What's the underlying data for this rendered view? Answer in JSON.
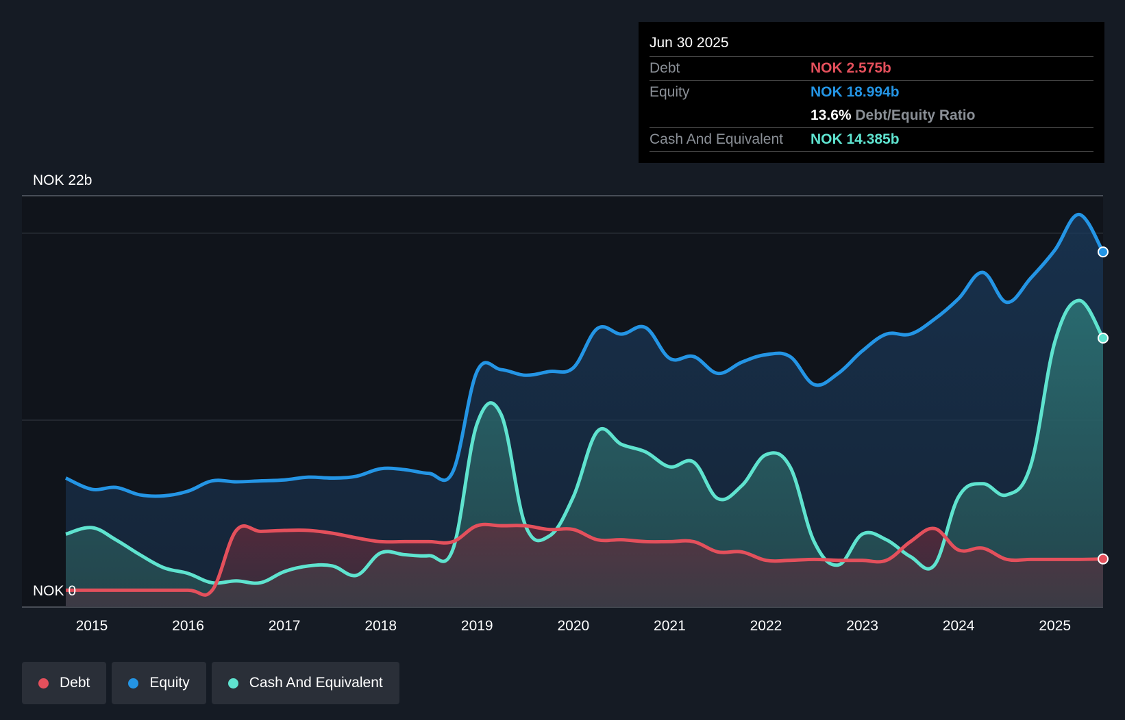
{
  "chart_data": {
    "type": "area",
    "y_axis": {
      "top_label": "NOK 22b",
      "bottom_label": "NOK 0",
      "max": 22,
      "min": 0,
      "unit": "NOK b"
    },
    "x_axis": {
      "ticks": [
        "2015",
        "2016",
        "2017",
        "2018",
        "2019",
        "2020",
        "2021",
        "2022",
        "2023",
        "2024",
        "2025"
      ],
      "range": [
        2014.73,
        2025.5
      ]
    },
    "series": [
      {
        "name": "Debt",
        "color": "#e4505c",
        "points": [
          [
            2014.73,
            0.9
          ],
          [
            2015.0,
            0.9
          ],
          [
            2015.5,
            0.9
          ],
          [
            2016.0,
            0.9
          ],
          [
            2016.25,
            0.9
          ],
          [
            2016.5,
            4.1
          ],
          [
            2016.75,
            4.05
          ],
          [
            2017.0,
            4.1
          ],
          [
            2017.25,
            4.1
          ],
          [
            2017.5,
            3.95
          ],
          [
            2017.75,
            3.7
          ],
          [
            2018.0,
            3.5
          ],
          [
            2018.25,
            3.5
          ],
          [
            2018.5,
            3.5
          ],
          [
            2018.75,
            3.5
          ],
          [
            2019.0,
            4.35
          ],
          [
            2019.25,
            4.35
          ],
          [
            2019.5,
            4.35
          ],
          [
            2019.75,
            4.15
          ],
          [
            2020.0,
            4.15
          ],
          [
            2020.25,
            3.6
          ],
          [
            2020.5,
            3.6
          ],
          [
            2020.75,
            3.5
          ],
          [
            2021.0,
            3.5
          ],
          [
            2021.25,
            3.5
          ],
          [
            2021.5,
            2.95
          ],
          [
            2021.75,
            2.95
          ],
          [
            2022.0,
            2.5
          ],
          [
            2022.25,
            2.5
          ],
          [
            2022.5,
            2.55
          ],
          [
            2022.75,
            2.5
          ],
          [
            2023.0,
            2.5
          ],
          [
            2023.25,
            2.5
          ],
          [
            2023.5,
            3.5
          ],
          [
            2023.75,
            4.2
          ],
          [
            2024.0,
            3.05
          ],
          [
            2024.25,
            3.15
          ],
          [
            2024.5,
            2.55
          ],
          [
            2024.75,
            2.55
          ],
          [
            2025.0,
            2.55
          ],
          [
            2025.25,
            2.55
          ],
          [
            2025.5,
            2.575
          ]
        ]
      },
      {
        "name": "Equity",
        "color": "#2495e5",
        "points": [
          [
            2014.73,
            6.9
          ],
          [
            2015.0,
            6.3
          ],
          [
            2015.25,
            6.4
          ],
          [
            2015.5,
            6.0
          ],
          [
            2015.75,
            5.95
          ],
          [
            2016.0,
            6.2
          ],
          [
            2016.25,
            6.75
          ],
          [
            2016.5,
            6.7
          ],
          [
            2016.75,
            6.75
          ],
          [
            2017.0,
            6.8
          ],
          [
            2017.25,
            6.95
          ],
          [
            2017.5,
            6.9
          ],
          [
            2017.75,
            7.0
          ],
          [
            2018.0,
            7.4
          ],
          [
            2018.25,
            7.35
          ],
          [
            2018.5,
            7.15
          ],
          [
            2018.75,
            7.25
          ],
          [
            2019.0,
            12.6
          ],
          [
            2019.25,
            12.7
          ],
          [
            2019.5,
            12.4
          ],
          [
            2019.75,
            12.6
          ],
          [
            2020.0,
            12.8
          ],
          [
            2020.25,
            14.9
          ],
          [
            2020.5,
            14.6
          ],
          [
            2020.75,
            14.95
          ],
          [
            2021.0,
            13.3
          ],
          [
            2021.25,
            13.4
          ],
          [
            2021.5,
            12.5
          ],
          [
            2021.75,
            13.1
          ],
          [
            2022.0,
            13.5
          ],
          [
            2022.25,
            13.4
          ],
          [
            2022.5,
            11.9
          ],
          [
            2022.75,
            12.5
          ],
          [
            2023.0,
            13.7
          ],
          [
            2023.25,
            14.6
          ],
          [
            2023.5,
            14.6
          ],
          [
            2023.75,
            15.4
          ],
          [
            2024.0,
            16.5
          ],
          [
            2024.25,
            17.9
          ],
          [
            2024.5,
            16.3
          ],
          [
            2024.75,
            17.6
          ],
          [
            2025.0,
            19.1
          ],
          [
            2025.25,
            21.0
          ],
          [
            2025.5,
            18.994
          ]
        ]
      },
      {
        "name": "Cash And Equivalent",
        "color": "#5fe3cf",
        "points": [
          [
            2014.73,
            3.9
          ],
          [
            2015.0,
            4.25
          ],
          [
            2015.25,
            3.6
          ],
          [
            2015.5,
            2.8
          ],
          [
            2015.75,
            2.1
          ],
          [
            2016.0,
            1.8
          ],
          [
            2016.25,
            1.3
          ],
          [
            2016.5,
            1.4
          ],
          [
            2016.75,
            1.3
          ],
          [
            2017.0,
            1.9
          ],
          [
            2017.25,
            2.2
          ],
          [
            2017.5,
            2.2
          ],
          [
            2017.75,
            1.7
          ],
          [
            2018.0,
            2.9
          ],
          [
            2018.25,
            2.8
          ],
          [
            2018.5,
            2.75
          ],
          [
            2018.75,
            3.1
          ],
          [
            2019.0,
            9.8
          ],
          [
            2019.25,
            10.3
          ],
          [
            2019.5,
            4.4
          ],
          [
            2019.75,
            3.8
          ],
          [
            2020.0,
            5.9
          ],
          [
            2020.25,
            9.4
          ],
          [
            2020.5,
            8.7
          ],
          [
            2020.75,
            8.3
          ],
          [
            2021.0,
            7.5
          ],
          [
            2021.25,
            7.75
          ],
          [
            2021.5,
            5.8
          ],
          [
            2021.75,
            6.5
          ],
          [
            2022.0,
            8.15
          ],
          [
            2022.25,
            7.5
          ],
          [
            2022.5,
            3.5
          ],
          [
            2022.75,
            2.25
          ],
          [
            2023.0,
            3.9
          ],
          [
            2023.25,
            3.6
          ],
          [
            2023.5,
            2.7
          ],
          [
            2023.75,
            2.25
          ],
          [
            2024.0,
            5.9
          ],
          [
            2024.25,
            6.6
          ],
          [
            2024.5,
            6.0
          ],
          [
            2024.75,
            7.6
          ],
          [
            2025.0,
            14.2
          ],
          [
            2025.25,
            16.4
          ],
          [
            2025.5,
            14.385
          ]
        ]
      }
    ],
    "grid": true,
    "legend_position": "bottom-left"
  },
  "tooltip": {
    "date": "Jun 30 2025",
    "debt_label": "Debt",
    "debt_value": "NOK 2.575b",
    "equity_label": "Equity",
    "equity_value": "NOK 18.994b",
    "ratio_value": "13.6%",
    "ratio_label": "Debt/Equity Ratio",
    "cash_label": "Cash And Equivalent",
    "cash_value": "NOK 14.385b"
  },
  "legend": [
    {
      "label": "Debt",
      "color": "#e4505c"
    },
    {
      "label": "Equity",
      "color": "#2495e5"
    },
    {
      "label": "Cash And Equivalent",
      "color": "#5fe3cf"
    }
  ]
}
